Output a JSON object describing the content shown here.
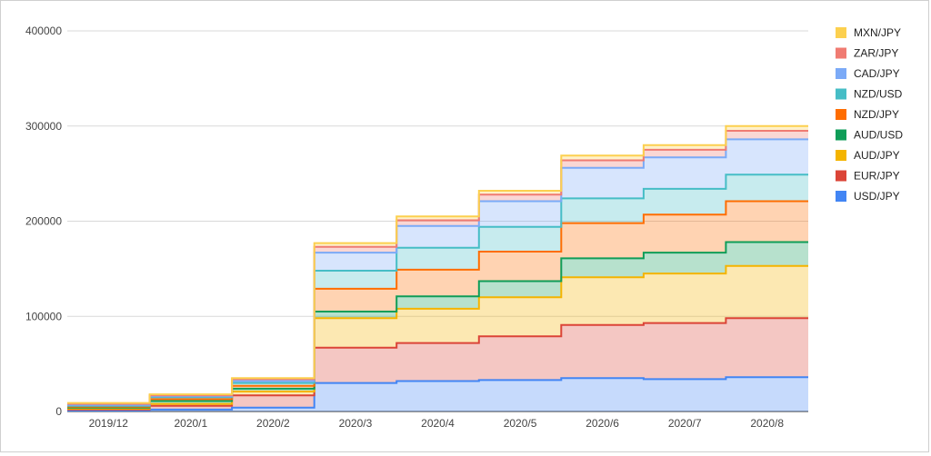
{
  "chart_data": {
    "type": "area",
    "stacked": true,
    "step": true,
    "title": "",
    "xlabel": "",
    "ylabel": "",
    "categories": [
      "2019/12",
      "2020/1",
      "2020/2",
      "2020/3",
      "2020/4",
      "2020/5",
      "2020/6",
      "2020/7",
      "2020/8"
    ],
    "ylim": [
      0,
      400000
    ],
    "yticks": [
      0,
      100000,
      200000,
      300000,
      400000
    ],
    "ytick_labels": [
      "0",
      "100000",
      "200000",
      "300000",
      "400000"
    ],
    "grid": true,
    "legend_position": "right",
    "series": [
      {
        "name": "USD/JPY",
        "color": "#4285f4",
        "values": [
          1000,
          2000,
          4000,
          30000,
          32000,
          33000,
          35000,
          34000,
          36000
        ]
      },
      {
        "name": "EUR/JPY",
        "color": "#db4437",
        "values": [
          1000,
          4000,
          13000,
          37000,
          40000,
          46000,
          56000,
          59000,
          62000
        ]
      },
      {
        "name": "AUD/JPY",
        "color": "#f4b400",
        "values": [
          1000,
          2000,
          4000,
          31000,
          36000,
          41000,
          50000,
          52000,
          55000
        ]
      },
      {
        "name": "AUD/USD",
        "color": "#0f9d58",
        "values": [
          1000,
          3000,
          3000,
          7000,
          13000,
          17000,
          20000,
          22000,
          25000
        ]
      },
      {
        "name": "NZD/JPY",
        "color": "#ff6d01",
        "values": [
          1000,
          2000,
          3000,
          24000,
          28000,
          31000,
          37000,
          40000,
          43000
        ]
      },
      {
        "name": "NZD/USD",
        "color": "#46bdc6",
        "values": [
          1000,
          2000,
          3000,
          19000,
          23000,
          26000,
          26000,
          27000,
          28000
        ]
      },
      {
        "name": "CAD/JPY",
        "color": "#7baaf7",
        "values": [
          1000,
          1000,
          2000,
          19000,
          23000,
          27000,
          32000,
          33000,
          37000
        ]
      },
      {
        "name": "ZAR/JPY",
        "color": "#f07b72",
        "values": [
          1000,
          1000,
          2000,
          6000,
          6000,
          7000,
          8000,
          8000,
          9000
        ]
      },
      {
        "name": "MXN/JPY",
        "color": "#fcd04f",
        "values": [
          1000,
          1000,
          1000,
          4000,
          4000,
          4000,
          5000,
          5000,
          5000
        ]
      }
    ]
  }
}
